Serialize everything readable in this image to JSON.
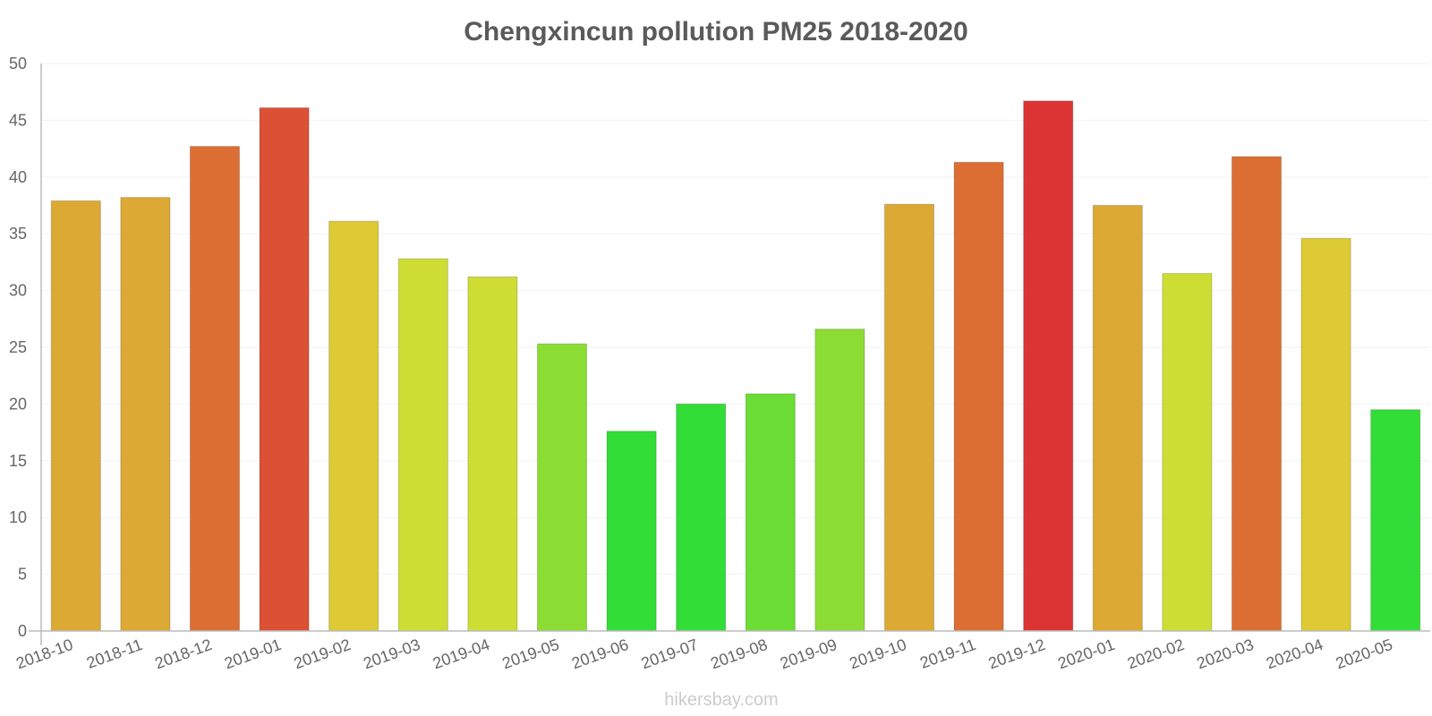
{
  "chart_data": {
    "type": "bar",
    "title": "Chengxincun pollution PM25 2018-2020",
    "xlabel": "",
    "ylabel": "",
    "ylim": [
      0,
      50
    ],
    "yticks": [
      0,
      5,
      10,
      15,
      20,
      25,
      30,
      35,
      40,
      45,
      50
    ],
    "categories": [
      "2018-10",
      "2018-11",
      "2018-12",
      "2019-01",
      "2019-02",
      "2019-03",
      "2019-04",
      "2019-05",
      "2019-06",
      "2019-07",
      "2019-08",
      "2019-09",
      "2019-10",
      "2019-11",
      "2019-12",
      "2020-01",
      "2020-02",
      "2020-03",
      "2020-04",
      "2020-05"
    ],
    "values": [
      37.9,
      38.2,
      42.7,
      46.1,
      36.1,
      32.8,
      31.2,
      25.3,
      17.6,
      20.0,
      20.9,
      26.6,
      37.6,
      41.3,
      46.7,
      37.5,
      31.5,
      41.8,
      34.6,
      19.5
    ],
    "bar_colors": [
      "#dca934",
      "#dca934",
      "#dd6e33",
      "#dc5033",
      "#ddca34",
      "#cedd34",
      "#cedd34",
      "#8bdd34",
      "#33dd38",
      "#33dd38",
      "#6bdd34",
      "#8bdd34",
      "#dca934",
      "#dd6e33",
      "#dc3434",
      "#dca934",
      "#cedd34",
      "#dd6e33",
      "#ddca34",
      "#33dd38"
    ],
    "grid": true,
    "legend": "none"
  },
  "watermark": "hikersbay.com"
}
